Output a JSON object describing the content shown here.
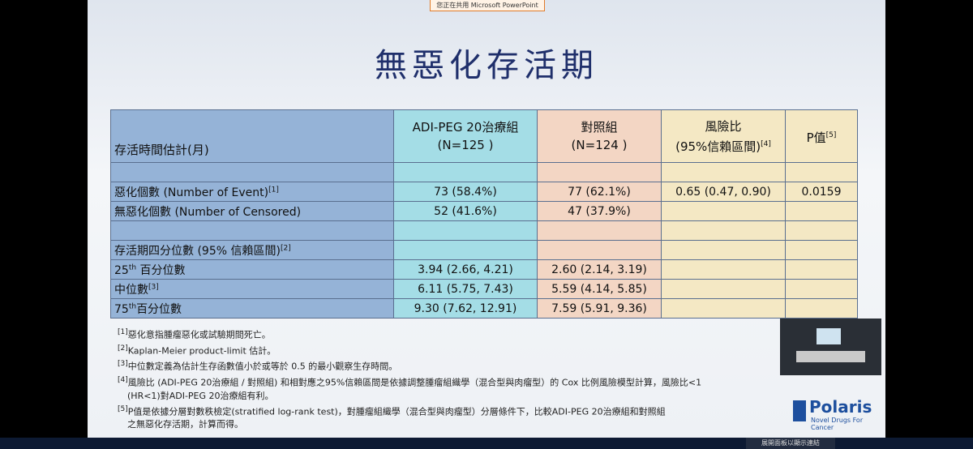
{
  "banner": "您正在共用 Microsoft PowerPoint",
  "title": "無惡化存活期",
  "table": {
    "header": [
      [
        {
          "text": "存活時間估計(月)"
        }
      ],
      [
        {
          "text": "ADI-PEG 20治療組"
        },
        {
          "br": "(N=125 )"
        }
      ],
      [
        {
          "text": "對照組"
        },
        {
          "br": "(N=124 )"
        }
      ],
      [
        {
          "text": "風險比"
        },
        {
          "br": "(95%信賴區間)"
        },
        {
          "sup": "[4]"
        }
      ],
      [
        {
          "text": "P值"
        },
        {
          "sup": "[5]"
        }
      ]
    ],
    "rows": [
      [
        null,
        null,
        null,
        null,
        null
      ],
      [
        [
          {
            "text": "惡化個數 (Number of Event)"
          },
          {
            "sup": "[1]"
          }
        ],
        "73 (58.4%)",
        "77 (62.1%)",
        "0.65 (0.47, 0.90)",
        "0.0159"
      ],
      [
        [
          {
            "text": "無惡化個數 (Number of Censored)"
          }
        ],
        "52 (41.6%)",
        "47 (37.9%)",
        null,
        null
      ],
      [
        null,
        null,
        null,
        null,
        null
      ],
      [
        [
          {
            "text": "存活期四分位數 (95% 信賴區間)"
          },
          {
            "sup": "[2]"
          }
        ],
        null,
        null,
        null,
        null
      ],
      [
        [
          {
            "text": " 25"
          },
          {
            "sup": "th"
          },
          {
            "text": " 百分位數"
          }
        ],
        "3.94 (2.66, 4.21)",
        "2.60 (2.14, 3.19)",
        null,
        null
      ],
      [
        [
          {
            "text": "  中位數"
          },
          {
            "sup": "[3]"
          }
        ],
        "6.11 (5.75, 7.43)",
        "5.59 (4.14, 5.85)",
        null,
        null
      ],
      [
        [
          {
            "text": " 75"
          },
          {
            "sup": "th"
          },
          {
            "text": "百分位數"
          }
        ],
        "9.30 (7.62, 12.91)",
        "7.59 (5.91, 9.36)",
        null,
        null
      ]
    ]
  },
  "footnotes": [
    {
      "mark": "[1]",
      "lines": [
        "惡化意指腫瘤惡化或試驗期間死亡。"
      ]
    },
    {
      "mark": "[2]",
      "lines": [
        "Kaplan-Meier product-limit 估計。"
      ]
    },
    {
      "mark": "[3]",
      "lines": [
        "中位數定義為估計生存函數值小於或等於 0.5 的最小觀察生存時間。"
      ]
    },
    {
      "mark": "[4]",
      "lines": [
        "風險比 (ADI-PEG 20治療組 / 對照組) 和相對應之95%信賴區間是依據調整腫瘤組織學（混合型與肉瘤型）的 Cox 比例風險模型計算，風險比<1",
        "(HR<1)對ADI-PEG 20治療組有利。"
      ]
    },
    {
      "mark": "[5]",
      "lines": [
        "P值是依據分層對數秩檢定(stratified log-rank test)，對腫瘤組織學（混合型與肉瘤型）分層條件下，比較ADI-PEG 20治療組和對照組",
        "之無惡化存活期，計算而得。"
      ]
    }
  ],
  "logo": {
    "name": "Polaris",
    "tagline": "Novel Drugs For Cancer"
  },
  "taskbar": "展開面板以顯示連結"
}
